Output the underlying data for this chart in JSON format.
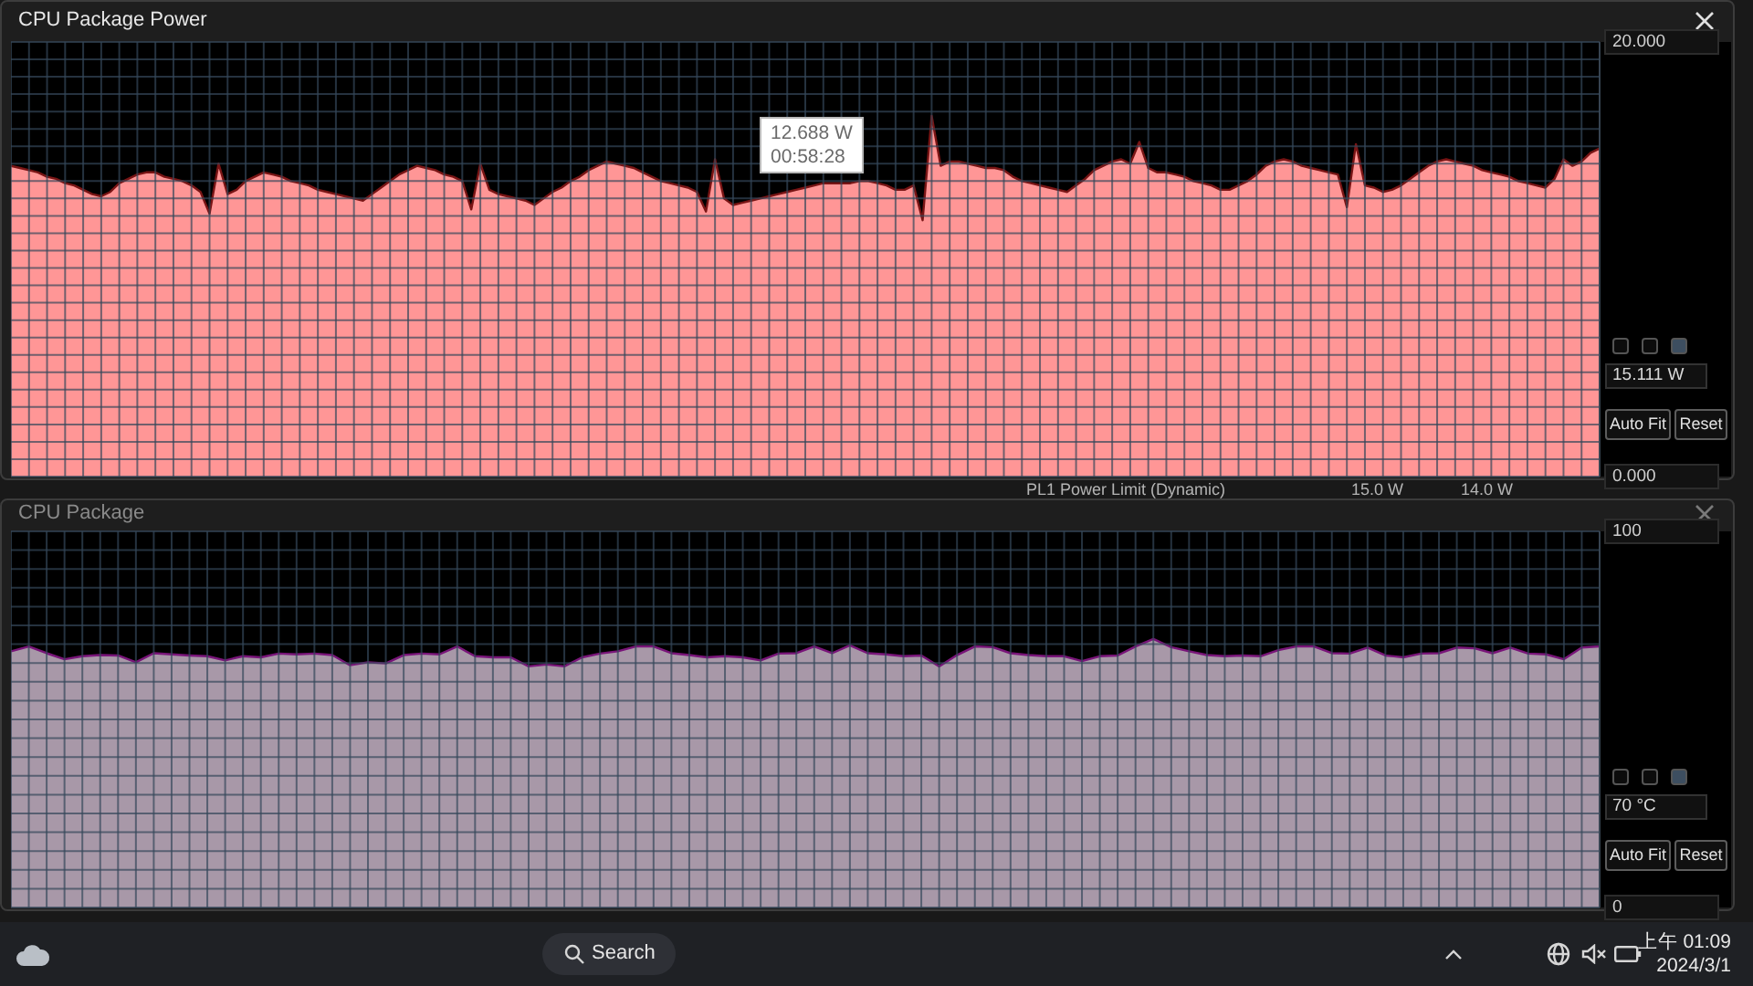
{
  "chart_data": [
    {
      "type": "area",
      "title": "CPU Package Power",
      "categories": [
        null,
        null,
        null,
        null,
        null,
        null,
        null,
        null,
        null,
        null,
        null,
        null,
        null,
        null,
        null,
        null,
        null,
        null,
        null,
        null,
        null,
        null,
        null,
        null,
        null,
        null,
        null,
        null,
        null,
        null,
        null,
        null,
        null,
        null,
        null,
        null,
        null,
        null,
        null,
        null,
        null,
        null,
        null,
        null,
        null,
        null,
        null,
        null,
        null,
        null,
        null,
        null,
        null,
        null,
        null,
        null,
        null,
        null,
        null,
        null,
        null,
        null,
        null,
        null,
        null,
        null,
        null,
        null,
        null,
        null,
        null,
        null,
        null,
        null,
        null,
        null,
        null,
        null,
        null,
        null,
        null,
        null,
        null,
        null,
        null,
        null,
        null,
        null,
        null,
        null,
        null,
        null,
        null,
        null,
        null,
        null,
        null,
        null,
        null,
        null,
        null,
        null,
        null,
        null,
        null,
        null,
        null,
        null,
        null,
        null,
        null,
        null,
        null,
        null,
        null,
        null,
        null,
        null,
        null,
        null,
        null,
        null,
        null,
        null,
        null,
        null,
        null,
        null,
        null,
        null,
        null,
        null,
        null,
        null,
        null,
        null,
        null,
        null,
        null,
        null,
        null,
        null,
        null,
        null,
        null,
        null,
        null,
        null,
        null,
        null,
        null,
        null,
        null,
        null,
        null,
        null,
        null,
        null,
        null,
        null,
        null,
        null,
        null,
        null,
        null,
        null,
        null,
        null,
        null,
        null,
        null,
        null,
        null,
        null,
        null,
        null,
        null
      ],
      "values": [
        14.3,
        14.2,
        14.1,
        14.0,
        13.8,
        13.7,
        13.5,
        13.4,
        13.2,
        13.0,
        12.9,
        13.1,
        13.5,
        13.7,
        13.9,
        14.0,
        14.0,
        13.8,
        13.7,
        13.6,
        13.4,
        13.1,
        12.1,
        14.4,
        13.0,
        13.2,
        13.6,
        13.8,
        14.0,
        13.9,
        13.8,
        13.6,
        13.5,
        13.4,
        13.2,
        13.1,
        13.0,
        12.9,
        12.8,
        12.7,
        13.0,
        13.3,
        13.6,
        13.9,
        14.1,
        14.3,
        14.2,
        14.1,
        13.9,
        13.8,
        13.6,
        12.3,
        14.4,
        13.2,
        13.0,
        12.9,
        12.8,
        12.7,
        12.5,
        12.8,
        13.1,
        13.3,
        13.6,
        13.8,
        14.1,
        14.3,
        14.5,
        14.4,
        14.3,
        14.2,
        14.0,
        13.8,
        13.6,
        13.5,
        13.4,
        13.3,
        13.1,
        12.2,
        14.6,
        12.8,
        12.5,
        12.6,
        12.7,
        12.8,
        12.9,
        13.0,
        13.1,
        13.2,
        13.3,
        13.4,
        13.5,
        13.5,
        13.5,
        13.5,
        13.6,
        13.6,
        13.5,
        13.4,
        13.2,
        13.2,
        13.4,
        11.8,
        16.6,
        14.3,
        14.5,
        14.5,
        14.4,
        14.3,
        14.2,
        14.2,
        14.1,
        13.8,
        13.6,
        13.5,
        13.4,
        13.3,
        13.2,
        13.1,
        13.4,
        13.7,
        14.1,
        14.3,
        14.5,
        14.6,
        14.4,
        15.4,
        14.2,
        14.0,
        14.0,
        13.9,
        13.8,
        13.6,
        13.5,
        13.4,
        13.2,
        13.2,
        13.4,
        13.6,
        13.9,
        14.3,
        14.5,
        14.6,
        14.5,
        14.3,
        14.2,
        14.1,
        14.0,
        13.9,
        12.4,
        15.3,
        13.4,
        13.3,
        13.1,
        13.2,
        13.4,
        13.7,
        14.0,
        14.3,
        14.5,
        14.6,
        14.5,
        14.4,
        14.3,
        14.1,
        14.0,
        13.9,
        13.8,
        13.6,
        13.5,
        13.4,
        13.3,
        13.7,
        14.6,
        14.3,
        14.5,
        14.9,
        15.1
      ],
      "color": "#ff9696",
      "ylim": [
        0,
        20
      ],
      "yticks": [
        {
          "value": 0,
          "label": "0.000"
        },
        {
          "value": 0.8,
          "label": null
        },
        {
          "value": 1.6,
          "label": null
        },
        {
          "value": 2.4,
          "label": null
        },
        {
          "value": 3.2,
          "label": null
        },
        {
          "value": 4,
          "label": null
        },
        {
          "value": 4.8,
          "label": null
        },
        {
          "value": 5.6,
          "label": null
        },
        {
          "value": 6.4,
          "label": null
        },
        {
          "value": 7.2,
          "label": null
        },
        {
          "value": 8,
          "label": null
        },
        {
          "value": 8.8,
          "label": null
        },
        {
          "value": 9.6,
          "label": null
        },
        {
          "value": 10.4,
          "label": null
        },
        {
          "value": 11.2,
          "label": null
        },
        {
          "value": 12,
          "label": null
        },
        {
          "value": 12.8,
          "label": null
        },
        {
          "value": 13.6,
          "label": null
        },
        {
          "value": 14.4,
          "label": null
        },
        {
          "value": 15.2,
          "label": null
        },
        {
          "value": 16,
          "label": null
        },
        {
          "value": 16.8,
          "label": null
        },
        {
          "value": 17.6,
          "label": null
        },
        {
          "value": 18.4,
          "label": null
        },
        {
          "value": 19.2,
          "label": null
        },
        {
          "value": 20,
          "label": "20.000"
        }
      ],
      "grid": true,
      "tick_labels": "y",
      "annotations": [
        "12.688 W\n00:58:28",
        "15.111 W",
        "Auto Fit",
        "Reset",
        "PL1 Power Limit (Dynamic)",
        "15.0 W",
        "14.0 W"
      ]
    },
    {
      "type": "area",
      "title": "CPU Package",
      "categories": [
        null,
        null,
        null,
        null,
        null,
        null,
        null,
        null,
        null,
        null,
        null,
        null,
        null,
        null,
        null,
        null,
        null,
        null,
        null,
        null,
        null,
        null,
        null,
        null,
        null,
        null,
        null,
        null,
        null,
        null,
        null,
        null,
        null,
        null,
        null,
        null,
        null,
        null,
        null,
        null,
        null,
        null,
        null,
        null,
        null,
        null,
        null,
        null,
        null,
        null,
        null,
        null,
        null,
        null,
        null,
        null,
        null,
        null,
        null,
        null,
        null,
        null,
        null,
        null,
        null,
        null,
        null,
        null,
        null,
        null,
        null,
        null,
        null,
        null,
        null,
        null,
        null,
        null,
        null,
        null,
        null,
        null,
        null,
        null,
        null,
        null,
        null,
        null,
        null,
        null
      ],
      "values": [
        68.1,
        69.4,
        67.6,
        66.0,
        66.8,
        67.1,
        67.0,
        65.2,
        67.6,
        67.3,
        67.0,
        66.8,
        65.7,
        66.8,
        66.5,
        67.5,
        67.3,
        67.5,
        67.1,
        64.4,
        65.2,
        64.9,
        67.1,
        67.5,
        67.3,
        69.4,
        66.8,
        66.5,
        66.5,
        64.1,
        64.6,
        64.1,
        66.5,
        67.5,
        68.1,
        69.4,
        69.4,
        67.6,
        67.1,
        66.5,
        66.8,
        66.5,
        65.7,
        67.5,
        67.6,
        69.4,
        67.6,
        69.7,
        67.6,
        67.3,
        66.8,
        67.0,
        64.1,
        67.1,
        69.4,
        69.2,
        67.6,
        67.1,
        66.8,
        66.8,
        65.5,
        66.8,
        67.0,
        69.4,
        71.4,
        69.2,
        68.1,
        67.1,
        66.8,
        67.0,
        66.8,
        68.4,
        69.4,
        69.4,
        67.6,
        67.5,
        69.1,
        67.0,
        66.5,
        67.5,
        67.6,
        69.1,
        68.9,
        67.6,
        69.1,
        67.5,
        67.3,
        66.0,
        69.1,
        69.4
      ],
      "color": "#a898a8",
      "ylim": [
        0,
        100
      ],
      "yticks": [
        0,
        {
          "value": 5,
          "label": null
        },
        {
          "value": 10,
          "label": null
        },
        {
          "value": 15,
          "label": null
        },
        {
          "value": 20,
          "label": null
        },
        {
          "value": 25,
          "label": null
        },
        {
          "value": 30,
          "label": null
        },
        {
          "value": 35,
          "label": null
        },
        {
          "value": 40,
          "label": null
        },
        {
          "value": 45,
          "label": null
        },
        {
          "value": 50,
          "label": null
        },
        {
          "value": 55,
          "label": null
        },
        {
          "value": 60,
          "label": null
        },
        {
          "value": 65,
          "label": null
        },
        {
          "value": 70,
          "label": null
        },
        {
          "value": 75,
          "label": null
        },
        {
          "value": 80,
          "label": null
        },
        {
          "value": 85,
          "label": null
        },
        {
          "value": 90,
          "label": null
        },
        {
          "value": 95,
          "label": null
        },
        100
      ],
      "grid": true,
      "tick_labels": "y",
      "annotations": [
        "70 °C",
        "Auto Fit",
        "Reset",
        "Search",
        "上午 01:09",
        "2024/3/1"
      ]
    }
  ]
}
